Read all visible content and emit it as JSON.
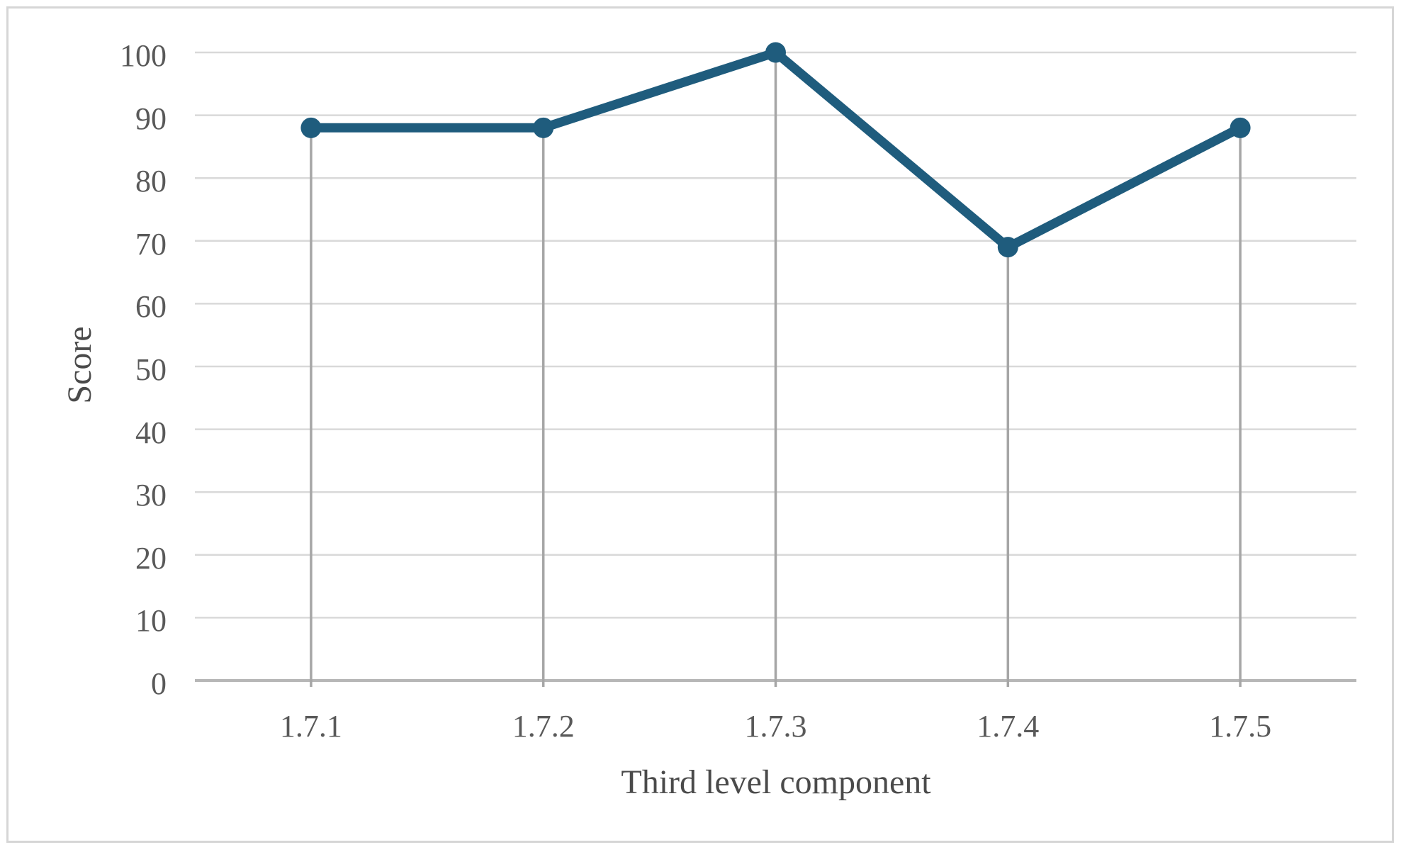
{
  "chart_data": {
    "type": "line",
    "title": "",
    "xlabel": "Third level component",
    "ylabel": "Score",
    "categories": [
      "1.7.1",
      "1.7.2",
      "1.7.3",
      "1.7.4",
      "1.7.5"
    ],
    "series": [
      {
        "name": "Score",
        "values": [
          88,
          88,
          100,
          69,
          88
        ]
      }
    ],
    "ylim": [
      0,
      100
    ],
    "yticks": [
      0,
      10,
      20,
      30,
      40,
      50,
      60,
      70,
      80,
      90,
      100
    ],
    "grid": "horizontal",
    "legend_position": "none",
    "drop_lines": true,
    "markers": "filled-circle",
    "colors": {
      "line": "#1F5C7D",
      "marker": "#1F5C7D",
      "gridline": "#D9D9D9",
      "axis_line": "#B7B7B7",
      "drop_line": "#A6A6A6",
      "tick_text": "#595959",
      "axis_title_text": "#4A4A4A",
      "frame_border": "#D6D6D6",
      "background": "#FFFFFF"
    }
  }
}
